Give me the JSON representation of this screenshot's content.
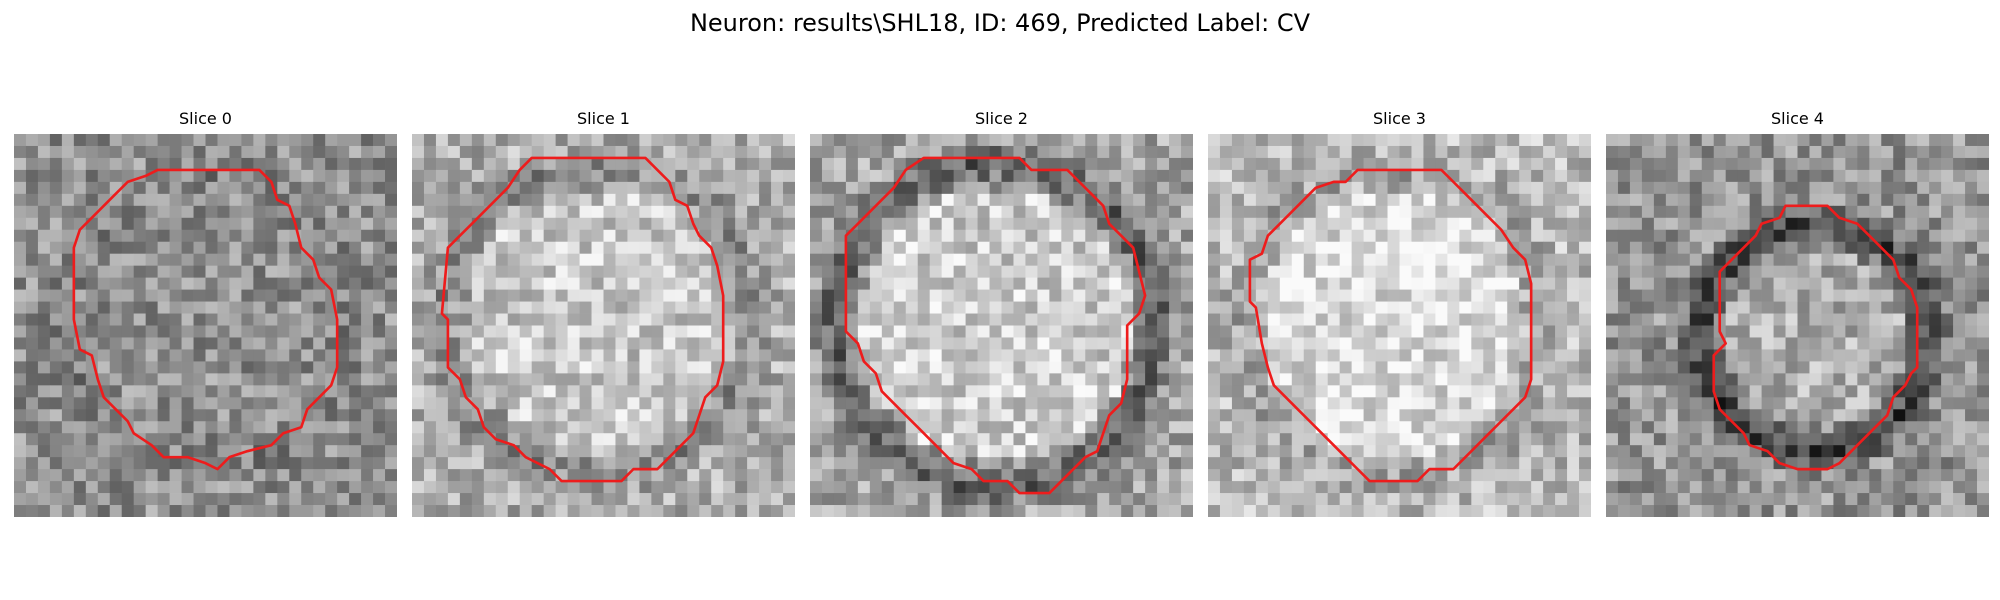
{
  "figure": {
    "title": "Neuron: results\\SHL18, ID: 469, Predicted Label: CV"
  },
  "colors": {
    "contour": "#ee1c1c",
    "background": "#ffffff"
  },
  "slices": [
    {
      "label": "Slice 0",
      "contour": [
        [
          15.5,
          3.0
        ],
        [
          20.5,
          3.0
        ],
        [
          21.5,
          4.0
        ],
        [
          22.0,
          5.5
        ],
        [
          23.0,
          6.0
        ],
        [
          23.5,
          7.5
        ],
        [
          24.0,
          9.5
        ],
        [
          25.0,
          10.5
        ],
        [
          25.5,
          12.0
        ],
        [
          26.5,
          13.0
        ],
        [
          27.0,
          15.5
        ],
        [
          27.0,
          19.5
        ],
        [
          26.5,
          21.0
        ],
        [
          25.5,
          22.0
        ],
        [
          24.5,
          23.0
        ],
        [
          24.0,
          24.5
        ],
        [
          22.5,
          25.0
        ],
        [
          21.5,
          26.0
        ],
        [
          19.5,
          26.5
        ],
        [
          18.0,
          27.0
        ],
        [
          17.0,
          28.0
        ],
        [
          16.0,
          27.5
        ],
        [
          14.5,
          27.0
        ],
        [
          12.5,
          27.0
        ],
        [
          11.5,
          26.0
        ],
        [
          10.0,
          25.0
        ],
        [
          9.5,
          24.0
        ],
        [
          8.5,
          23.0
        ],
        [
          7.5,
          22.0
        ],
        [
          7.0,
          20.5
        ],
        [
          6.5,
          18.5
        ],
        [
          5.5,
          18.0
        ],
        [
          5.0,
          15.5
        ],
        [
          5.0,
          9.5
        ],
        [
          5.5,
          8.0
        ],
        [
          6.5,
          7.0
        ],
        [
          7.5,
          6.0
        ],
        [
          8.5,
          5.0
        ],
        [
          9.5,
          4.0
        ],
        [
          11.0,
          3.5
        ],
        [
          12.0,
          3.0
        ]
      ]
    },
    {
      "label": "Slice 1",
      "contour": [
        [
          10.0,
          2.0
        ],
        [
          19.5,
          2.0
        ],
        [
          20.5,
          3.0
        ],
        [
          21.5,
          4.0
        ],
        [
          22.0,
          5.5
        ],
        [
          23.0,
          6.0
        ],
        [
          23.5,
          7.5
        ],
        [
          24.0,
          8.5
        ],
        [
          25.0,
          9.5
        ],
        [
          25.5,
          11.0
        ],
        [
          26.0,
          13.5
        ],
        [
          26.0,
          19.0
        ],
        [
          25.5,
          21.0
        ],
        [
          24.5,
          22.0
        ],
        [
          24.0,
          23.5
        ],
        [
          23.5,
          25.0
        ],
        [
          22.5,
          26.0
        ],
        [
          21.5,
          27.0
        ],
        [
          20.5,
          28.0
        ],
        [
          18.5,
          28.0
        ],
        [
          17.5,
          29.0
        ],
        [
          12.5,
          29.0
        ],
        [
          11.5,
          28.0
        ],
        [
          9.5,
          27.0
        ],
        [
          8.5,
          26.0
        ],
        [
          7.0,
          25.5
        ],
        [
          6.0,
          24.5
        ],
        [
          5.5,
          23.0
        ],
        [
          4.5,
          22.0
        ],
        [
          4.0,
          20.5
        ],
        [
          3.0,
          19.5
        ],
        [
          3.0,
          15.5
        ],
        [
          2.5,
          15.0
        ],
        [
          3.0,
          9.5
        ],
        [
          4.0,
          8.5
        ],
        [
          5.0,
          7.5
        ],
        [
          6.0,
          6.5
        ],
        [
          7.0,
          5.5
        ],
        [
          8.0,
          4.5
        ],
        [
          9.0,
          3.0
        ]
      ]
    },
    {
      "label": "Slice 2",
      "contour": [
        [
          9.5,
          2.0
        ],
        [
          17.5,
          2.0
        ],
        [
          18.5,
          3.0
        ],
        [
          21.5,
          3.0
        ],
        [
          22.5,
          4.0
        ],
        [
          23.5,
          5.0
        ],
        [
          24.5,
          6.0
        ],
        [
          25.0,
          7.5
        ],
        [
          26.0,
          8.5
        ],
        [
          27.0,
          9.5
        ],
        [
          27.5,
          11.5
        ],
        [
          28.0,
          13.5
        ],
        [
          27.5,
          15.0
        ],
        [
          26.5,
          16.0
        ],
        [
          26.5,
          20.5
        ],
        [
          26.0,
          22.5
        ],
        [
          25.0,
          23.5
        ],
        [
          24.5,
          25.0
        ],
        [
          24.0,
          26.5
        ],
        [
          23.0,
          27.0
        ],
        [
          22.0,
          28.0
        ],
        [
          21.0,
          29.0
        ],
        [
          20.0,
          30.0
        ],
        [
          17.5,
          30.0
        ],
        [
          16.5,
          29.0
        ],
        [
          14.5,
          29.0
        ],
        [
          13.5,
          28.0
        ],
        [
          12.0,
          27.5
        ],
        [
          11.0,
          26.5
        ],
        [
          10.0,
          25.5
        ],
        [
          9.0,
          24.5
        ],
        [
          8.0,
          23.5
        ],
        [
          7.0,
          22.5
        ],
        [
          6.0,
          21.5
        ],
        [
          5.5,
          20.0
        ],
        [
          4.5,
          19.0
        ],
        [
          4.0,
          17.5
        ],
        [
          3.0,
          16.5
        ],
        [
          3.0,
          8.5
        ],
        [
          4.0,
          7.5
        ],
        [
          5.0,
          6.5
        ],
        [
          6.0,
          5.5
        ],
        [
          7.0,
          4.5
        ],
        [
          8.0,
          3.0
        ]
      ]
    },
    {
      "label": "Slice 3",
      "contour": [
        [
          15.5,
          3.0
        ],
        [
          19.5,
          3.0
        ],
        [
          20.5,
          4.0
        ],
        [
          21.5,
          5.0
        ],
        [
          22.5,
          6.0
        ],
        [
          23.5,
          7.0
        ],
        [
          24.5,
          8.0
        ],
        [
          25.5,
          9.5
        ],
        [
          26.5,
          10.5
        ],
        [
          27.0,
          12.5
        ],
        [
          27.0,
          20.5
        ],
        [
          26.5,
          22.0
        ],
        [
          25.5,
          23.0
        ],
        [
          24.5,
          24.0
        ],
        [
          23.5,
          25.0
        ],
        [
          22.5,
          26.0
        ],
        [
          21.5,
          27.0
        ],
        [
          20.5,
          28.0
        ],
        [
          18.5,
          28.0
        ],
        [
          17.5,
          29.0
        ],
        [
          13.5,
          29.0
        ],
        [
          12.5,
          28.0
        ],
        [
          11.5,
          27.0
        ],
        [
          10.5,
          26.0
        ],
        [
          9.5,
          25.0
        ],
        [
          8.5,
          24.0
        ],
        [
          7.5,
          23.0
        ],
        [
          6.5,
          22.0
        ],
        [
          5.5,
          21.0
        ],
        [
          5.0,
          19.5
        ],
        [
          4.5,
          17.5
        ],
        [
          4.0,
          14.5
        ],
        [
          3.5,
          14.0
        ],
        [
          3.5,
          10.5
        ],
        [
          4.5,
          10.0
        ],
        [
          5.0,
          8.5
        ],
        [
          6.0,
          7.5
        ],
        [
          7.0,
          6.5
        ],
        [
          8.0,
          5.5
        ],
        [
          9.0,
          4.5
        ],
        [
          10.5,
          4.0
        ],
        [
          11.5,
          4.0
        ],
        [
          12.5,
          3.0
        ]
      ]
    },
    {
      "label": "Slice 4",
      "contour": [
        [
          15.0,
          6.0
        ],
        [
          18.5,
          6.0
        ],
        [
          19.5,
          7.0
        ],
        [
          21.0,
          7.5
        ],
        [
          22.0,
          8.5
        ],
        [
          23.0,
          9.5
        ],
        [
          24.0,
          10.5
        ],
        [
          24.5,
          12.0
        ],
        [
          25.5,
          13.0
        ],
        [
          26.0,
          14.5
        ],
        [
          26.0,
          19.5
        ],
        [
          25.5,
          20.0
        ],
        [
          25.0,
          21.0
        ],
        [
          24.0,
          22.0
        ],
        [
          23.5,
          23.5
        ],
        [
          22.5,
          24.5
        ],
        [
          21.5,
          25.5
        ],
        [
          20.5,
          26.5
        ],
        [
          19.5,
          27.5
        ],
        [
          18.5,
          28.0
        ],
        [
          16.0,
          28.0
        ],
        [
          14.5,
          27.5
        ],
        [
          13.5,
          26.5
        ],
        [
          12.0,
          26.0
        ],
        [
          11.5,
          25.0
        ],
        [
          10.5,
          24.0
        ],
        [
          9.5,
          23.0
        ],
        [
          9.0,
          21.5
        ],
        [
          9.0,
          18.5
        ],
        [
          10.0,
          17.5
        ],
        [
          9.5,
          16.5
        ],
        [
          9.5,
          11.5
        ],
        [
          10.5,
          10.5
        ],
        [
          11.5,
          9.5
        ],
        [
          12.5,
          8.5
        ],
        [
          13.0,
          7.5
        ],
        [
          14.5,
          7.0
        ]
      ]
    }
  ]
}
